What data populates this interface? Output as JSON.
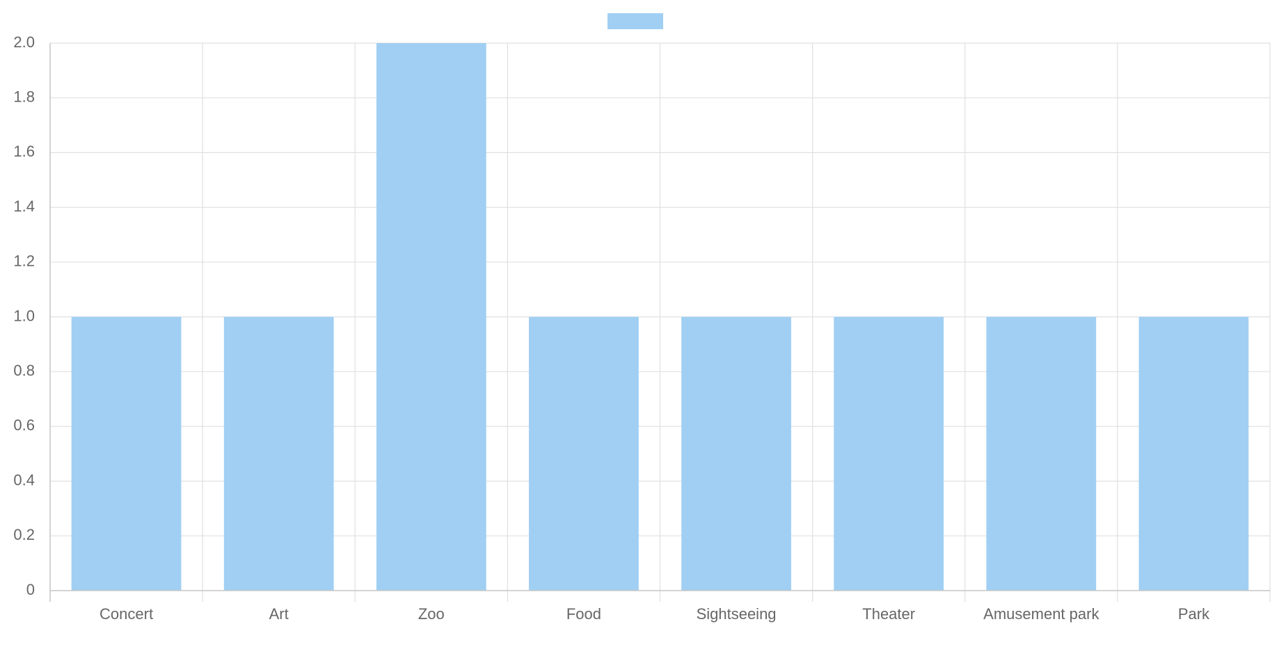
{
  "chart_data": {
    "type": "bar",
    "categories": [
      "Concert",
      "Art",
      "Zoo",
      "Food",
      "Sightseeing",
      "Theater",
      "Amusement park",
      "Park"
    ],
    "values": [
      1,
      1,
      2,
      1,
      1,
      1,
      1,
      1
    ],
    "color": "#a0cff3",
    "ylim": [
      0,
      2
    ],
    "yticks": [
      0,
      0.2,
      0.4,
      0.6,
      0.8,
      {
        "value": 1,
        "label": "1.0"
      },
      1.2,
      1.4,
      1.6,
      1.8,
      {
        "value": 2,
        "label": "2.0"
      }
    ],
    "grid": true
  }
}
